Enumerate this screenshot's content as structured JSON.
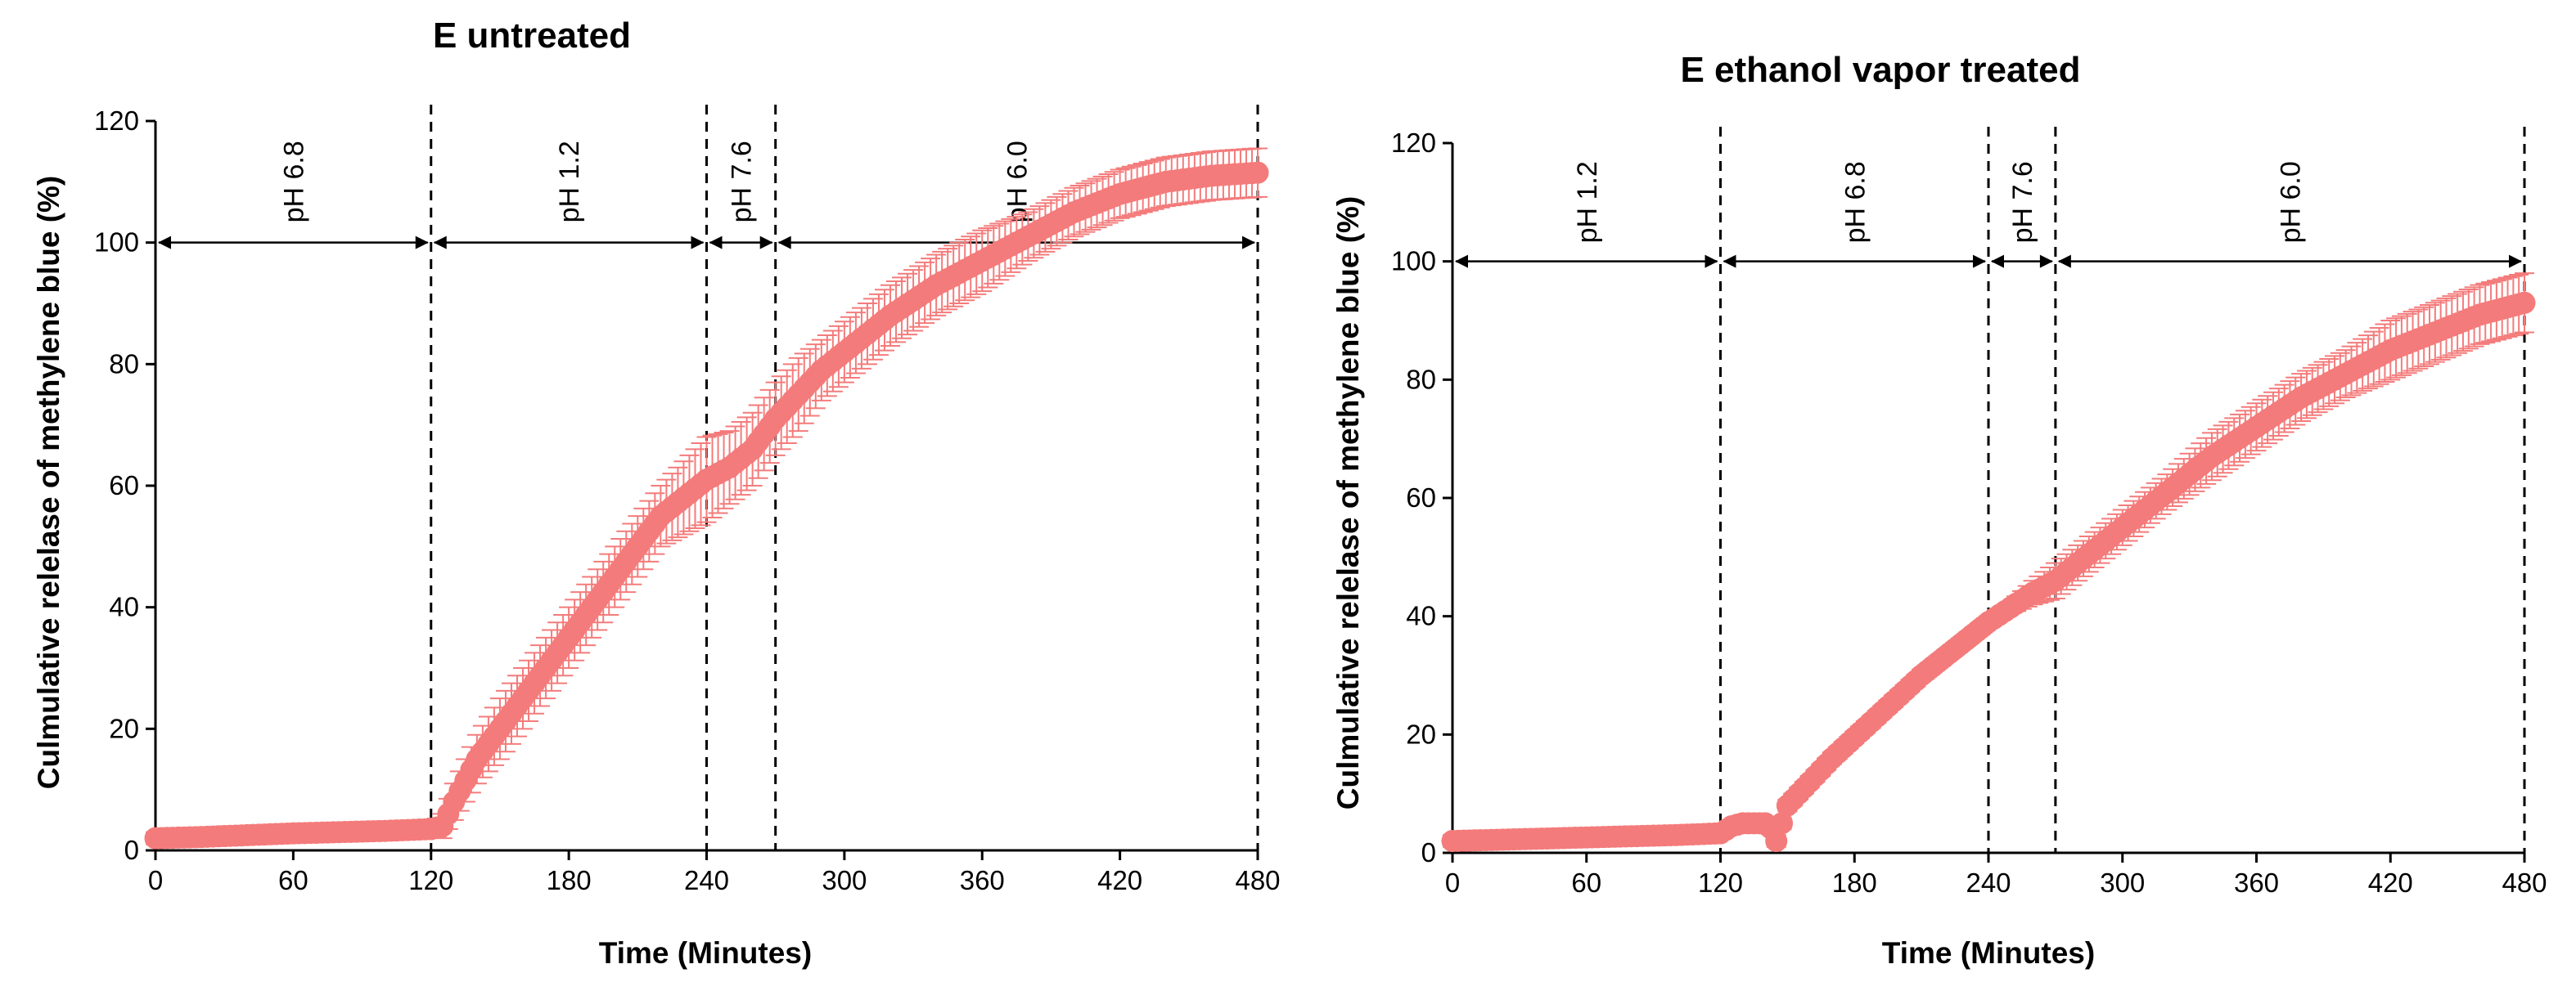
{
  "chart_data": [
    {
      "type": "line",
      "title": "E untreated",
      "xlabel": "Time (Minutes)",
      "ylabel": "Culmulative relelase of methylene blue (%)",
      "xlim": [
        0,
        480
      ],
      "ylim": [
        0,
        120
      ],
      "xticks": [
        0,
        60,
        120,
        180,
        240,
        300,
        360,
        420,
        480
      ],
      "yticks": [
        0,
        20,
        40,
        60,
        80,
        100,
        120
      ],
      "marker_color": "#f47b7b",
      "phase_boundaries": [
        120,
        240,
        270,
        480
      ],
      "phases": [
        {
          "label": "pH 6.8",
          "start": 0,
          "end": 120
        },
        {
          "label": "pH 1.2",
          "start": 120,
          "end": 240
        },
        {
          "label": "pH 7.6",
          "start": 240,
          "end": 270
        },
        {
          "label": "pH 6.0",
          "start": 270,
          "end": 480
        }
      ],
      "arrow_level": 100,
      "series": [
        {
          "x": [
            0,
            20,
            40,
            60,
            80,
            100,
            120,
            125,
            130,
            140,
            150,
            160,
            170,
            180,
            190,
            200,
            210,
            220,
            230,
            240,
            250,
            260,
            270,
            280,
            290,
            300,
            320,
            340,
            360,
            380,
            400,
            420,
            440,
            460,
            480
          ],
          "y": [
            2,
            2.2,
            2.5,
            2.8,
            3,
            3.2,
            3.5,
            4,
            8,
            15,
            20,
            25,
            30,
            35,
            40,
            45,
            50,
            55,
            58,
            61,
            63,
            66,
            71,
            75,
            79,
            82,
            88,
            93,
            97,
            101,
            105,
            108,
            110,
            111,
            111.5
          ],
          "err": [
            1,
            1,
            1,
            1,
            1,
            1,
            1,
            2,
            3,
            4,
            5,
            5,
            5,
            5,
            5,
            5,
            5,
            5,
            6,
            7,
            6,
            6,
            6,
            6,
            5,
            5,
            5,
            5,
            5,
            4,
            4,
            4,
            4,
            4,
            4
          ]
        }
      ]
    },
    {
      "type": "line",
      "title": "E ethanol vapor treated",
      "xlabel": "Time (Minutes)",
      "ylabel": "Culmulative relelase of methylene blue (%)",
      "xlim": [
        0,
        480
      ],
      "ylim": [
        0,
        120
      ],
      "xticks": [
        0,
        60,
        120,
        180,
        240,
        300,
        360,
        420,
        480
      ],
      "yticks": [
        0,
        20,
        40,
        60,
        80,
        100,
        120
      ],
      "marker_color": "#f47b7b",
      "phase_boundaries": [
        120,
        240,
        270,
        480
      ],
      "phases": [
        {
          "label": "pH 1.2",
          "start": 0,
          "end": 120
        },
        {
          "label": "pH 6.8",
          "start": 120,
          "end": 240
        },
        {
          "label": "pH 7.6",
          "start": 240,
          "end": 270
        },
        {
          "label": "pH 6.0",
          "start": 270,
          "end": 480
        }
      ],
      "arrow_level": 100,
      "series": [
        {
          "x": [
            0,
            20,
            40,
            60,
            80,
            100,
            120,
            125,
            130,
            135,
            140,
            143,
            145,
            150,
            160,
            170,
            180,
            190,
            200,
            210,
            220,
            230,
            240,
            250,
            260,
            270,
            280,
            300,
            320,
            340,
            360,
            380,
            400,
            420,
            440,
            460,
            480
          ],
          "y": [
            2,
            2.2,
            2.4,
            2.6,
            2.8,
            3,
            3.3,
            4.5,
            5,
            5,
            5,
            4,
            2,
            8,
            12,
            16,
            19.5,
            23,
            26.5,
            30,
            33,
            36,
            39,
            41.5,
            44,
            46,
            49,
            55,
            61,
            67,
            72,
            77,
            81,
            85,
            88,
            91,
            93
          ],
          "err": [
            1,
            1,
            1,
            1,
            1,
            1,
            1,
            1,
            1,
            1,
            1,
            1,
            1,
            1,
            1,
            1,
            1,
            1,
            1,
            1,
            1,
            1,
            1,
            1,
            2,
            3,
            3,
            3,
            3,
            4,
            4,
            4,
            4,
            5,
            5,
            5,
            5
          ]
        }
      ]
    }
  ]
}
